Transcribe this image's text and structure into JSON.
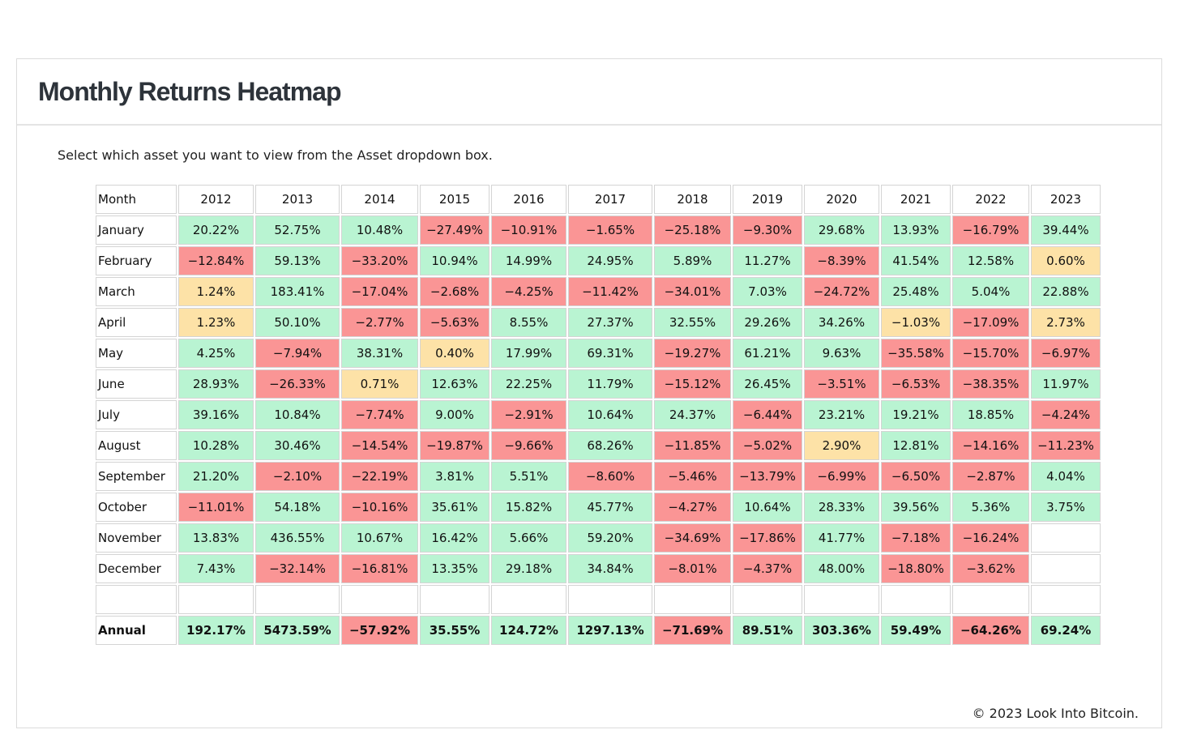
{
  "header": {
    "title": "Monthly Returns Heatmap"
  },
  "instructions": "Select which asset you want to view from the Asset dropdown box.",
  "footer": {
    "copyright": "© 2023 Look Into Bitcoin."
  },
  "colors": {
    "positive": "#b9f4d2",
    "negative": "#fa9595",
    "near_zero": "#fde2a7"
  },
  "chart_data": {
    "type": "heatmap",
    "corner_label": "Month",
    "annual_label": "Annual",
    "years": [
      "2012",
      "2013",
      "2014",
      "2015",
      "2016",
      "2017",
      "2018",
      "2019",
      "2020",
      "2021",
      "2022",
      "2023"
    ],
    "months": [
      "January",
      "February",
      "March",
      "April",
      "May",
      "June",
      "July",
      "August",
      "September",
      "October",
      "November",
      "December"
    ],
    "values": [
      [
        20.22,
        52.75,
        10.48,
        -27.49,
        -10.91,
        -1.65,
        -25.18,
        -9.3,
        29.68,
        13.93,
        -16.79,
        39.44
      ],
      [
        -12.84,
        59.13,
        -33.2,
        10.94,
        14.99,
        24.95,
        5.89,
        11.27,
        -8.39,
        41.54,
        12.58,
        0.6
      ],
      [
        1.24,
        183.41,
        -17.04,
        -2.68,
        -4.25,
        -11.42,
        -34.01,
        7.03,
        -24.72,
        25.48,
        5.04,
        22.88
      ],
      [
        1.23,
        50.1,
        -2.77,
        -5.63,
        8.55,
        27.37,
        32.55,
        29.26,
        34.26,
        -1.03,
        -17.09,
        2.73
      ],
      [
        4.25,
        -7.94,
        38.31,
        0.4,
        17.99,
        69.31,
        -19.27,
        61.21,
        9.63,
        -35.58,
        -15.7,
        -6.97
      ],
      [
        28.93,
        -26.33,
        0.71,
        12.63,
        22.25,
        11.79,
        -15.12,
        26.45,
        -3.51,
        -6.53,
        -38.35,
        11.97
      ],
      [
        39.16,
        10.84,
        -7.74,
        9.0,
        -2.91,
        10.64,
        24.37,
        -6.44,
        23.21,
        19.21,
        18.85,
        -4.24
      ],
      [
        10.28,
        30.46,
        -14.54,
        -19.87,
        -9.66,
        68.26,
        -11.85,
        -5.02,
        2.9,
        12.81,
        -14.16,
        -11.23
      ],
      [
        21.2,
        -2.1,
        -22.19,
        3.81,
        5.51,
        -8.6,
        -5.46,
        -13.79,
        -6.99,
        -6.5,
        -2.87,
        4.04
      ],
      [
        -11.01,
        54.18,
        -10.16,
        35.61,
        15.82,
        45.77,
        -4.27,
        10.64,
        28.33,
        39.56,
        5.36,
        3.75
      ],
      [
        13.83,
        436.55,
        10.67,
        16.42,
        5.66,
        59.2,
        -34.69,
        -17.86,
        41.77,
        -7.18,
        -16.24,
        null
      ],
      [
        7.43,
        -32.14,
        -16.81,
        13.35,
        29.18,
        34.84,
        -8.01,
        -4.37,
        48.0,
        -18.8,
        -3.62,
        null
      ]
    ],
    "annual": [
      192.17,
      5473.59,
      -57.92,
      35.55,
      124.72,
      1297.13,
      -71.69,
      89.51,
      303.36,
      59.49,
      -64.26,
      69.24
    ]
  }
}
